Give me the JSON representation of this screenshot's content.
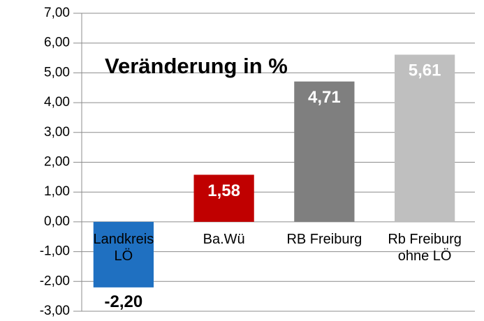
{
  "chart_data": {
    "type": "bar",
    "annotation": "Veränderung in %",
    "categories": [
      "Landkreis LÖ",
      "Ba.Wü",
      "RB Freiburg",
      "Rb Freiburg ohne LÖ"
    ],
    "values": [
      -2.2,
      1.58,
      4.71,
      5.61
    ],
    "value_labels": [
      "-2,20",
      "1,58",
      "4,71",
      "5,61"
    ],
    "colors": [
      "#1f70c1",
      "#c00000",
      "#7f7f7f",
      "#bfbfbf"
    ],
    "ylim": [
      -3,
      7
    ],
    "yticks": [
      {
        "value": -3,
        "label": "-3,00"
      },
      {
        "value": -2,
        "label": "-2,00"
      },
      {
        "value": -1,
        "label": "-1,00"
      },
      {
        "value": 0,
        "label": "0,00"
      },
      {
        "value": 1,
        "label": "1,00"
      },
      {
        "value": 2,
        "label": "2,00"
      },
      {
        "value": 3,
        "label": "3,00"
      },
      {
        "value": 4,
        "label": "4,00"
      },
      {
        "value": 5,
        "label": "5,00"
      },
      {
        "value": 6,
        "label": "6,00"
      },
      {
        "value": 7,
        "label": "7,00"
      }
    ],
    "grid": true
  }
}
